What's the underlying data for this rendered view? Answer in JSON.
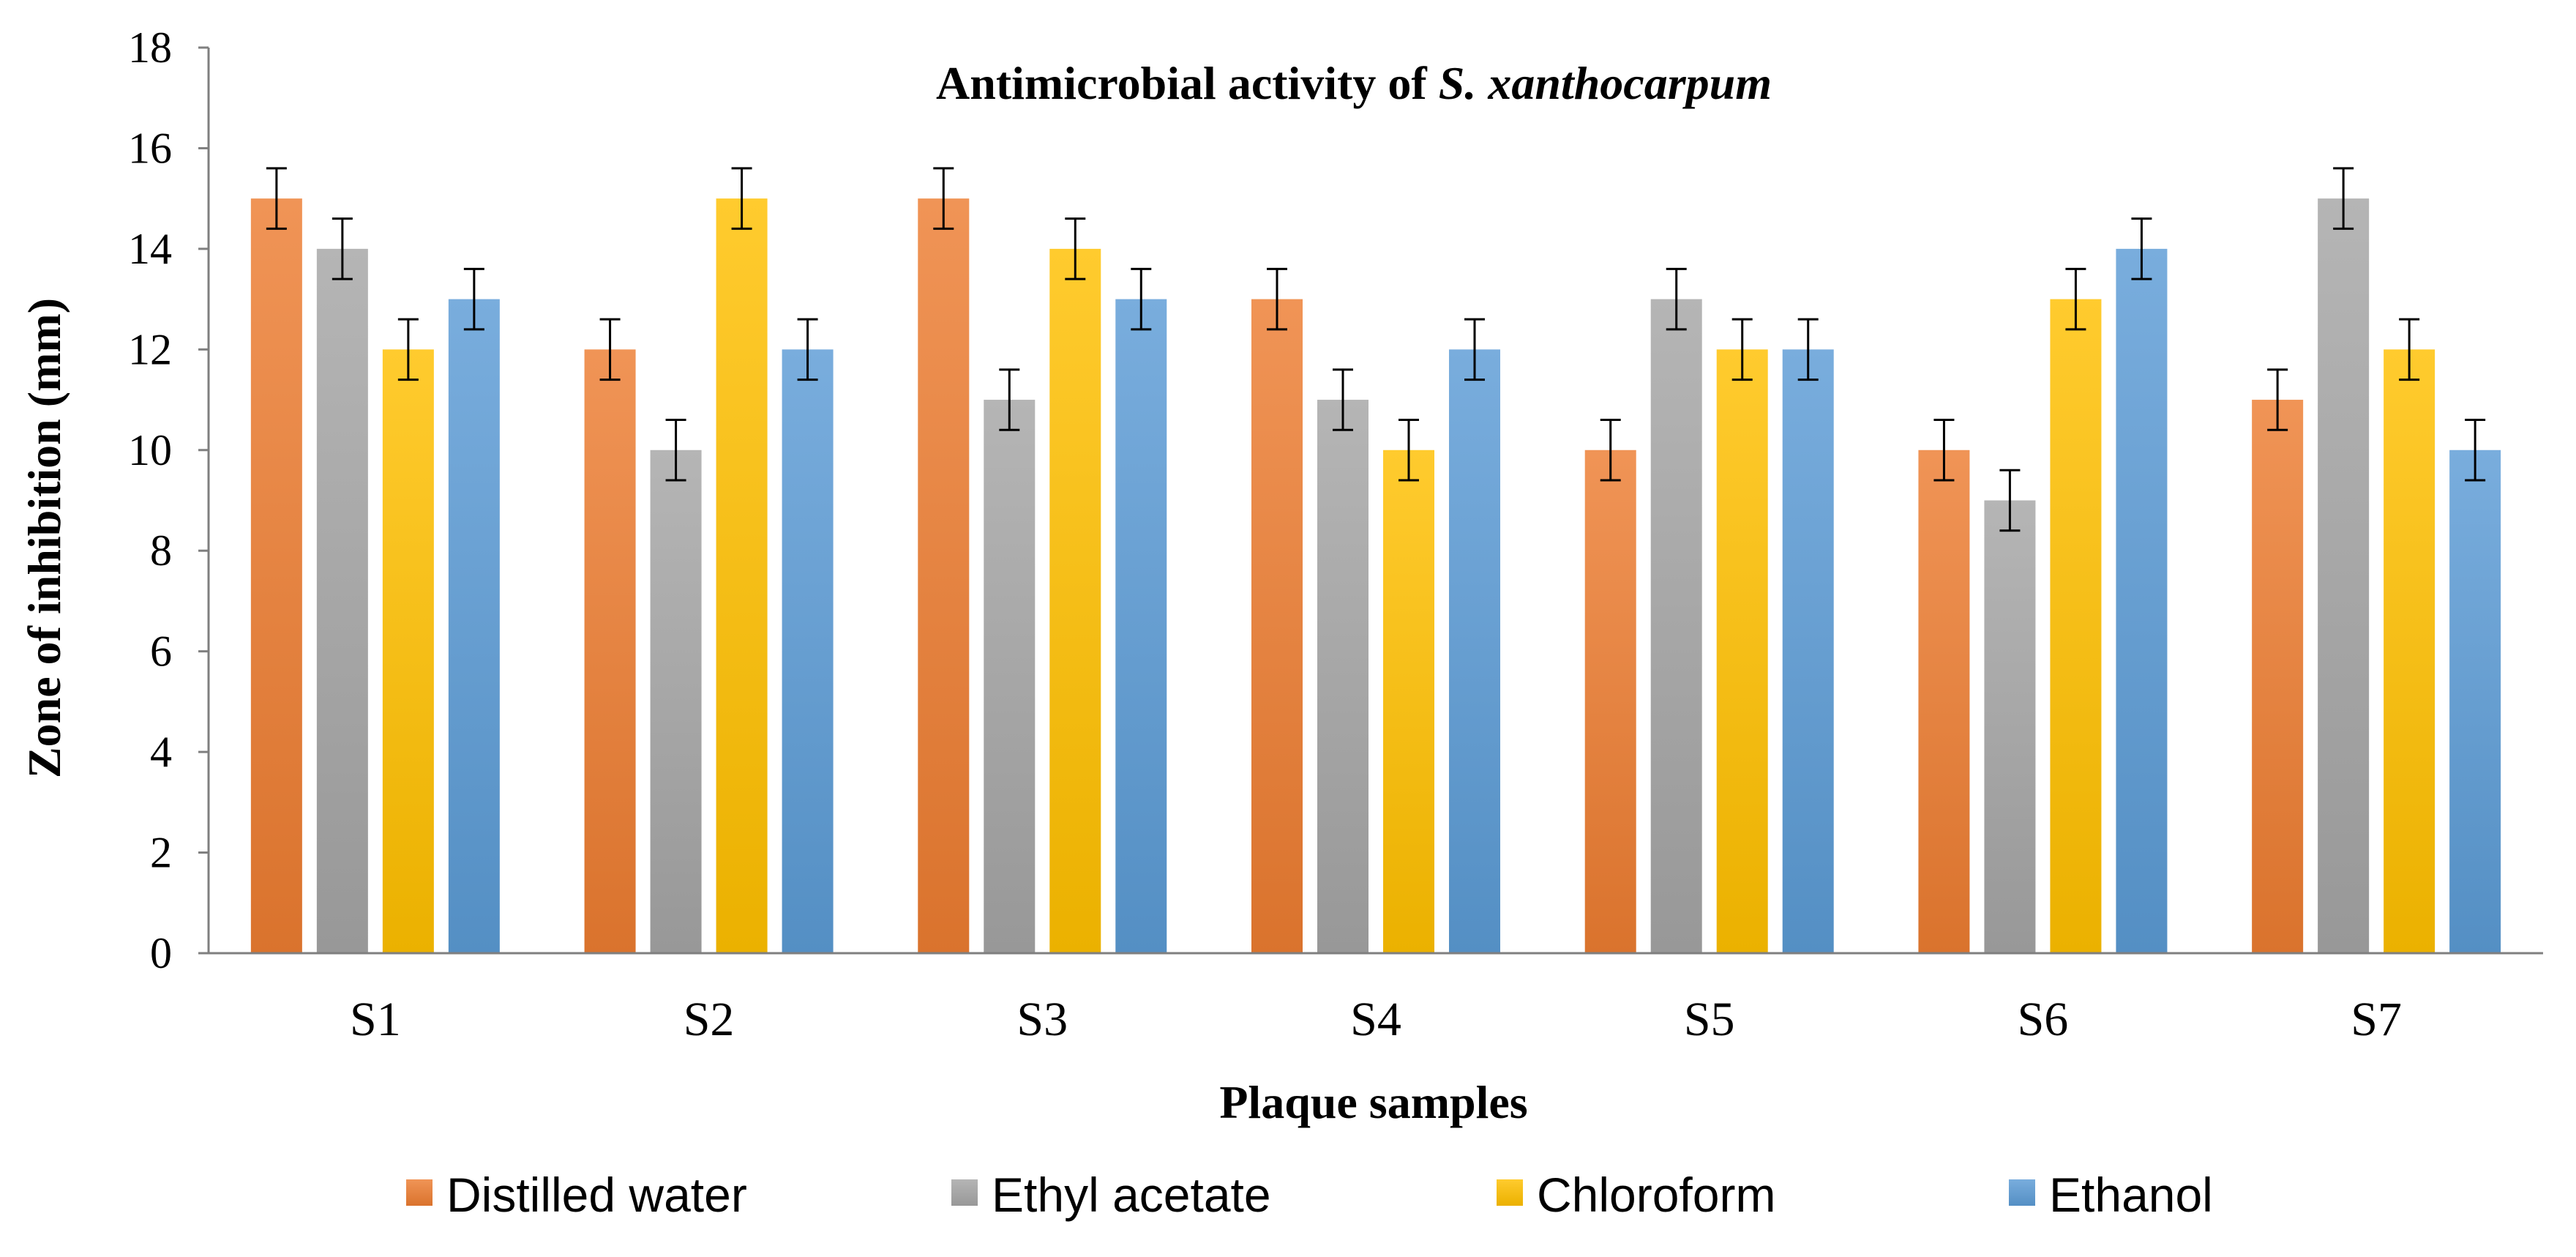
{
  "chart_data": {
    "type": "bar",
    "title": "Antimicrobial activity of",
    "title_italic": "S. xanthocarpum",
    "xlabel": "Plaque samples",
    "ylabel": "Zone of inhibition  (mm)",
    "ylim": [
      0,
      18
    ],
    "yticks": [
      0,
      2,
      4,
      6,
      8,
      10,
      12,
      14,
      16,
      18
    ],
    "categories": [
      "S1",
      "S2",
      "S3",
      "S4",
      "S5",
      "S6",
      "S7"
    ],
    "grid": false,
    "legend_position": "bottom",
    "error_bar": 0.6,
    "series": [
      {
        "name": "Distilled water",
        "color": "#ED7D31",
        "values": [
          15,
          12,
          15,
          13,
          10,
          10,
          11
        ]
      },
      {
        "name": "Ethyl acetate",
        "color": "#A5A5A5",
        "values": [
          14,
          10,
          11,
          11,
          13,
          9,
          15
        ]
      },
      {
        "name": "Chloroform",
        "color": "#FFC000",
        "values": [
          12,
          15,
          14,
          10,
          12,
          13,
          12
        ]
      },
      {
        "name": "Ethanol",
        "color": "#5B9BD5",
        "values": [
          13,
          12,
          13,
          12,
          12,
          14,
          10
        ]
      }
    ]
  }
}
